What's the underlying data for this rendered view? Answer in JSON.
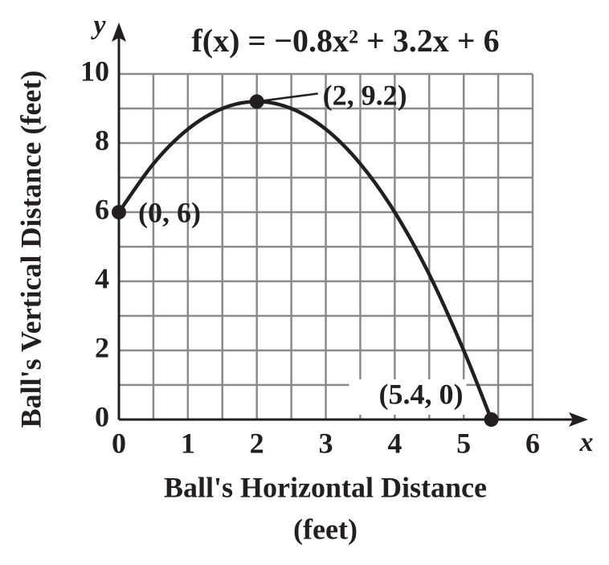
{
  "chart_data": {
    "type": "line",
    "title": "f(x) = −0.8x² + 3.2x + 6",
    "xlabel": [
      "Ball's Horizontal Distance",
      "(feet)"
    ],
    "ylabel": "Ball's Vertical Distance (feet)",
    "x_axis_letter": "x",
    "y_axis_letter": "y",
    "xlim": [
      0,
      6
    ],
    "ylim": [
      0,
      10
    ],
    "xticks": [
      0,
      1,
      2,
      3,
      4,
      5,
      6
    ],
    "yticks": [
      0,
      2,
      4,
      6,
      8,
      10
    ],
    "xgrid": [
      0,
      0.5,
      1,
      1.5,
      2,
      2.5,
      3,
      3.5,
      4,
      4.5,
      5,
      5.5,
      6
    ],
    "ygrid": [
      0,
      1,
      2,
      3,
      4,
      5,
      6,
      7,
      8,
      9,
      10
    ],
    "grid": true,
    "series": [
      {
        "color": "#231f20",
        "x": [
          0,
          0.5,
          1,
          1.5,
          2,
          2.5,
          3,
          3.5,
          4,
          4.5,
          5,
          5.4
        ],
        "values": [
          6,
          7.4,
          8.4,
          9,
          9.2,
          9,
          8.4,
          7.4,
          6,
          4.2,
          2,
          0
        ]
      }
    ],
    "points": [
      {
        "x": 0,
        "y": 6,
        "label": "(0, 6)"
      },
      {
        "x": 2,
        "y": 9.2,
        "label": "(2, 9.2)"
      },
      {
        "x": 5.4,
        "y": 0,
        "label": "(5.4, 0)"
      }
    ]
  }
}
